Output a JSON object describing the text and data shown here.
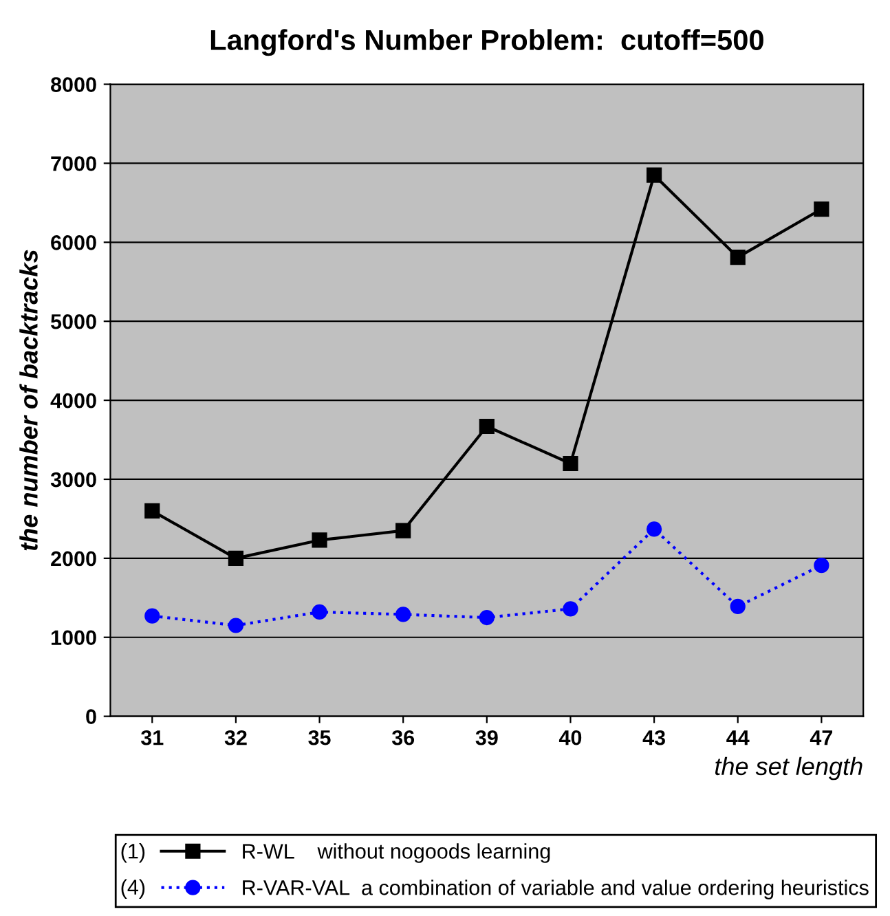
{
  "chart_data": {
    "type": "line",
    "title": "Langford's Number Problem:  cutoff=500",
    "xlabel": "the set length",
    "ylabel": "the number of backtracks",
    "categories": [
      "31",
      "32",
      "35",
      "36",
      "39",
      "40",
      "43",
      "44",
      "47"
    ],
    "series": [
      {
        "name": "R-WL    without nogoods learning",
        "color": "#000000",
        "marker": "square",
        "line_style": "solid",
        "values": [
          2600,
          2000,
          2230,
          2350,
          3670,
          3200,
          6850,
          5810,
          6420
        ]
      },
      {
        "name": "R-VAR-VAL  a combination of variable and value ordering heuristics",
        "color": "#0000ff",
        "marker": "circle",
        "line_style": "dotted",
        "values": [
          1270,
          1150,
          1320,
          1290,
          1250,
          1360,
          2370,
          1390,
          1910
        ]
      }
    ],
    "annotations": [
      "(1)",
      "(4)"
    ],
    "ylim": [
      0,
      8000
    ],
    "yticks": [
      0,
      1000,
      2000,
      3000,
      4000,
      5000,
      6000,
      7000,
      8000
    ],
    "grid": "y",
    "legend": "bottom"
  }
}
